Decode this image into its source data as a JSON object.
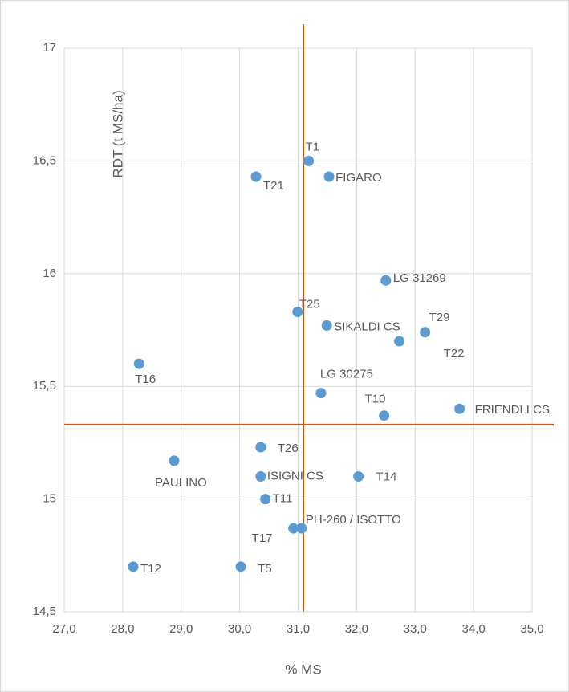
{
  "chart_data": {
    "type": "scatter",
    "x_label": "% MS",
    "y_label": "RDT (t MS/ha)",
    "color": "#5b9bd5",
    "grid": true,
    "xlim": [
      27,
      35
    ],
    "ylim": [
      14.5,
      17
    ],
    "xticks": [
      {
        "value": 27,
        "label": "27,0"
      },
      {
        "value": 28,
        "label": "28,0"
      },
      {
        "value": 29,
        "label": "29,0"
      },
      {
        "value": 30,
        "label": "30,0"
      },
      {
        "value": 31,
        "label": "31,0"
      },
      {
        "value": 32,
        "label": "32,0"
      },
      {
        "value": 33,
        "label": "33,0"
      },
      {
        "value": 34,
        "label": "34,0"
      },
      {
        "value": 35,
        "label": "35,0"
      }
    ],
    "yticks": [
      {
        "value": 14.5,
        "label": "14,5"
      },
      15,
      {
        "value": 15.5,
        "label": "15,5"
      },
      16,
      {
        "value": 16.5,
        "label": "16,5"
      },
      17
    ],
    "reference_lines": {
      "x": 31.09,
      "y": 15.33,
      "color": "#c55a11"
    },
    "point_labels": [
      "T1",
      "FIGARO",
      "T21",
      "LG 31269",
      "T25",
      "SIKALDI CS",
      "T29",
      "T22",
      "T16",
      "LG 30275",
      "T10",
      "FRIENDLI CS",
      "T26",
      "PAULINO",
      "ISIGNI CS",
      "T14",
      "T11",
      "PH-260 / ISOTTO",
      "T17",
      "T12",
      "T5"
    ],
    "x": [
      31.18,
      31.53,
      30.28,
      32.5,
      30.99,
      31.49,
      33.17,
      32.73,
      28.28,
      31.39,
      32.47,
      33.76,
      30.36,
      28.88,
      30.36,
      32.03,
      30.44,
      31.06,
      30.92,
      28.18,
      30.02
    ],
    "y": [
      16.5,
      16.43,
      16.43,
      15.97,
      15.83,
      15.77,
      15.74,
      15.7,
      15.6,
      15.47,
      15.37,
      15.4,
      15.23,
      15.17,
      15.1,
      15.1,
      15.0,
      14.87,
      14.87,
      14.7,
      14.7
    ]
  }
}
